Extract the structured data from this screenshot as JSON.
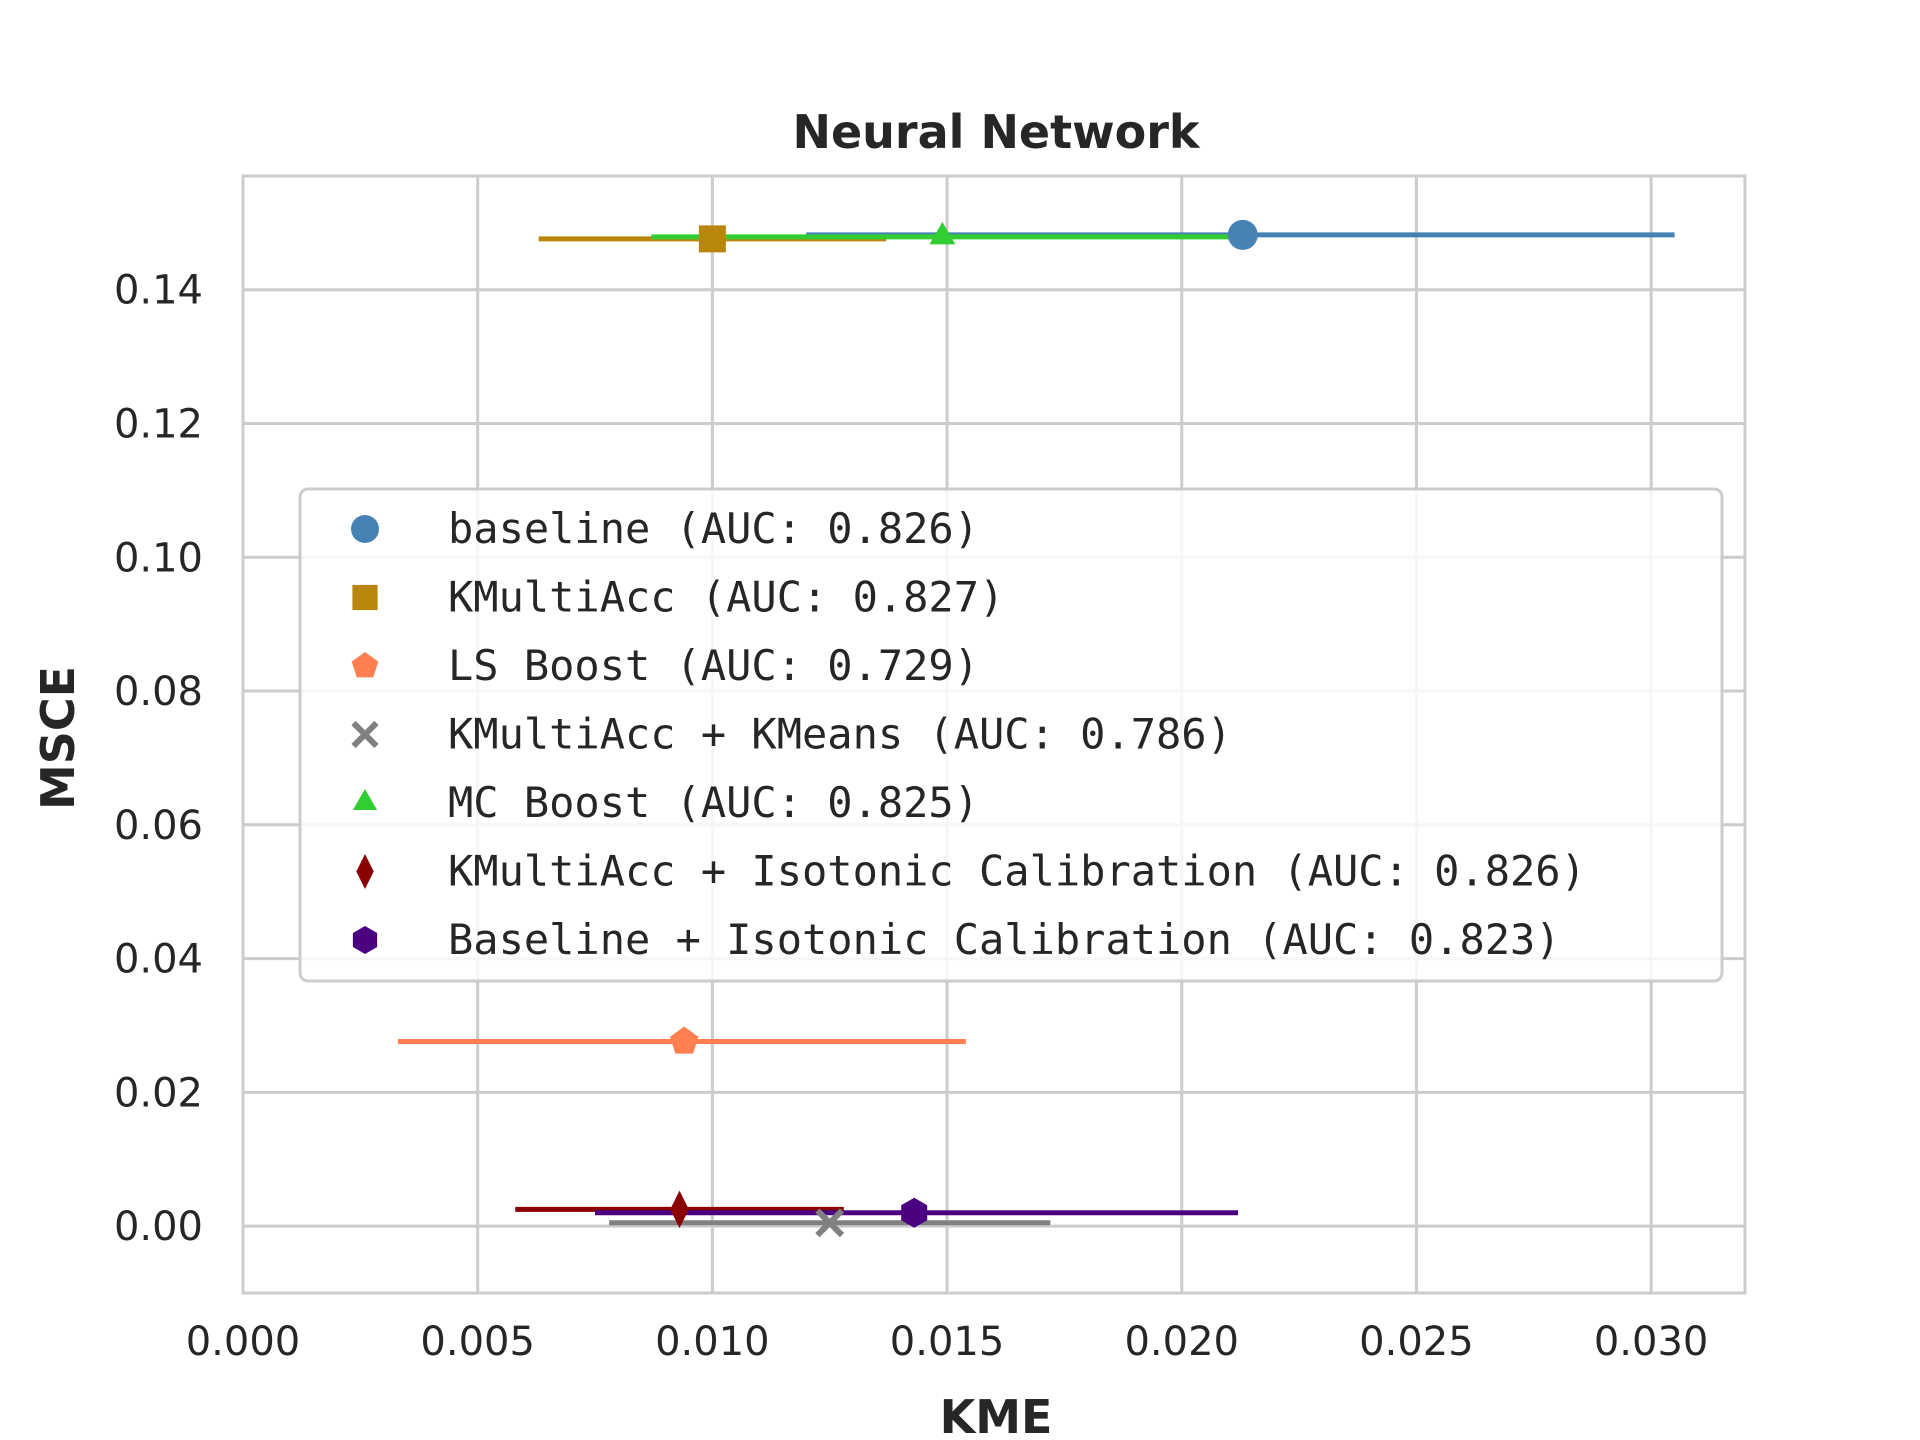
{
  "chart_data": {
    "type": "scatter",
    "title": "Neural Network",
    "xlabel": "KME",
    "ylabel": "MSCE",
    "xlim": [
      0.0,
      0.032
    ],
    "ylim": [
      -0.01,
      0.157
    ],
    "xticks": [
      0.0,
      0.005,
      0.01,
      0.015,
      0.02,
      0.025,
      0.03
    ],
    "xtick_labels": [
      "0.000",
      "0.005",
      "0.010",
      "0.015",
      "0.020",
      "0.025",
      "0.030"
    ],
    "yticks": [
      0.0,
      0.02,
      0.04,
      0.06,
      0.08,
      0.1,
      0.12,
      0.14
    ],
    "ytick_labels": [
      "0.00",
      "0.02",
      "0.04",
      "0.06",
      "0.08",
      "0.10",
      "0.12",
      "0.14"
    ],
    "grid": true,
    "legend_position": "center-left",
    "series": [
      {
        "name": "baseline (AUC: 0.826)",
        "marker": "circle",
        "color": "#4682B4",
        "x": 0.0213,
        "y": 0.1482,
        "xerr_low": 0.012,
        "xerr_high": 0.0305
      },
      {
        "name": "KMultiAcc (AUC: 0.827)",
        "marker": "square",
        "color": "#B8860B",
        "x": 0.01,
        "y": 0.1476,
        "xerr_low": 0.0063,
        "xerr_high": 0.0137
      },
      {
        "name": "LS Boost (AUC: 0.729)",
        "marker": "pentagon",
        "color": "#FF7F50",
        "x": 0.0094,
        "y": 0.0276,
        "xerr_low": 0.0033,
        "xerr_high": 0.0154
      },
      {
        "name": "KMultiAcc + KMeans (AUC: 0.786)",
        "marker": "x",
        "color": "#808080",
        "x": 0.0125,
        "y": 0.0005,
        "xerr_low": 0.0078,
        "xerr_high": 0.0172
      },
      {
        "name": "MC Boost (AUC: 0.825)",
        "marker": "triangle",
        "color": "#32CD32",
        "x": 0.0149,
        "y": 0.1479,
        "xerr_low": 0.0087,
        "xerr_high": 0.0211
      },
      {
        "name": "KMultiAcc + Isotonic Calibration (AUC: 0.826)",
        "marker": "diamond",
        "color": "#8B0000",
        "x": 0.0093,
        "y": 0.0025,
        "xerr_low": 0.0058,
        "xerr_high": 0.0128
      },
      {
        "name": "Baseline + Isotonic Calibration (AUC: 0.823)",
        "marker": "hexagon",
        "color": "#4B0082",
        "x": 0.0143,
        "y": 0.002,
        "xerr_low": 0.0075,
        "xerr_high": 0.0212
      }
    ]
  }
}
